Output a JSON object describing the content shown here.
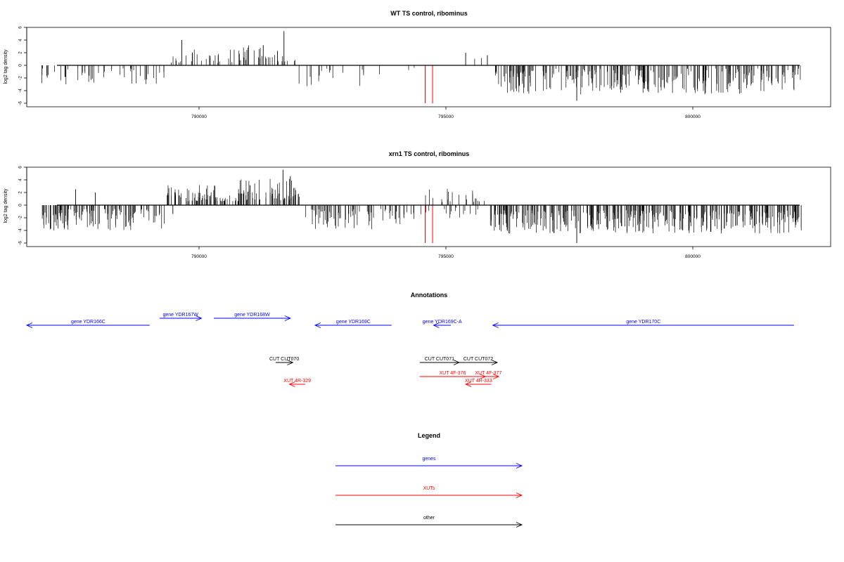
{
  "chart_data": [
    {
      "type": "bar",
      "title": "WT TS control, ribominus",
      "ylabel": "log2 tag density",
      "xlabel": "",
      "xlim": [
        786800,
        802300
      ],
      "ylim": [
        -6,
        6
      ],
      "x_ticks": [
        "790000",
        "795000",
        "800000"
      ],
      "y_ticks": [
        "6",
        "4",
        "2",
        "0",
        "-2",
        "-4",
        "-6"
      ],
      "grid": false,
      "segments": [
        {
          "start": 786800,
          "end": 789350,
          "density": 0.35,
          "min": -3.0,
          "max": -0.4,
          "sign": -1
        },
        {
          "start": 789350,
          "end": 790700,
          "density": 0.35,
          "min": 0.4,
          "max": 2.5,
          "sign": 1
        },
        {
          "start": 790700,
          "end": 791950,
          "density": 0.5,
          "min": 0.6,
          "max": 3.2,
          "sign": 1
        },
        {
          "start": 792000,
          "end": 794000,
          "density": 0.15,
          "min": -3.4,
          "max": -0.4,
          "sign": -1
        },
        {
          "start": 794100,
          "end": 794400,
          "density": 0.1,
          "min": -1.5,
          "max": -0.3,
          "sign": -1
        },
        {
          "start": 795300,
          "end": 795800,
          "density": 0.08,
          "min": 0.4,
          "max": 1.6,
          "sign": 1
        },
        {
          "start": 796000,
          "end": 797200,
          "density": 1.0,
          "min": -4.5,
          "max": -0.8,
          "sign": -1
        },
        {
          "start": 797200,
          "end": 802200,
          "density": 0.85,
          "min": -4.6,
          "max": -0.5,
          "sign": -1
        }
      ],
      "peaks": [
        {
          "x": 789650,
          "value": 4.0
        },
        {
          "x": 791720,
          "value": 5.4
        },
        {
          "x": 795400,
          "value": 2.0
        },
        {
          "x": 795840,
          "value": 1.6
        },
        {
          "x": 797650,
          "value": -5.6
        },
        {
          "x": 791300,
          "value": 3.2
        }
      ],
      "highlights": [
        {
          "x": 794580,
          "value": -6.0,
          "color": "#ff0000"
        },
        {
          "x": 794730,
          "value": -6.0,
          "color": "#ff0000"
        }
      ]
    },
    {
      "type": "bar",
      "title": "xrn1 TS control, ribominus",
      "ylabel": "log2 tag density",
      "xlabel": "",
      "xlim": [
        786800,
        802300
      ],
      "ylim": [
        -6,
        6
      ],
      "x_ticks": [
        "790000",
        "795000",
        "800000"
      ],
      "y_ticks": [
        "6",
        "4",
        "2",
        "0",
        "-2",
        "-4",
        "-6"
      ],
      "grid": false,
      "segments": [
        {
          "start": 786800,
          "end": 789300,
          "density": 0.9,
          "min": -4.0,
          "max": -0.6,
          "sign": -1
        },
        {
          "start": 789300,
          "end": 790800,
          "density": 1.0,
          "min": 0.6,
          "max": 3.2,
          "sign": 1
        },
        {
          "start": 790800,
          "end": 792050,
          "density": 1.0,
          "min": 0.8,
          "max": 4.2,
          "sign": 1
        },
        {
          "start": 792150,
          "end": 794400,
          "density": 0.6,
          "min": -3.8,
          "max": -0.6,
          "sign": -1
        },
        {
          "start": 794400,
          "end": 795900,
          "density": 0.25,
          "min": 0.5,
          "max": 2.8,
          "sign": 1
        },
        {
          "start": 794450,
          "end": 795900,
          "density": 0.2,
          "min": -2.2,
          "max": -0.4,
          "sign": -1
        },
        {
          "start": 795900,
          "end": 802200,
          "density": 1.1,
          "min": -4.5,
          "max": -0.8,
          "sign": -1
        }
      ],
      "peaks": [
        {
          "x": 787500,
          "value": 2.5
        },
        {
          "x": 787900,
          "value": 2.0
        },
        {
          "x": 791700,
          "value": 5.6
        },
        {
          "x": 791850,
          "value": 4.6
        },
        {
          "x": 797650,
          "value": -6.0
        },
        {
          "x": 789470,
          "value": -1.4
        }
      ],
      "highlights": [
        {
          "x": 794580,
          "value": -6.0,
          "color": "#ff0000"
        },
        {
          "x": 794730,
          "value": -6.0,
          "color": "#ff0000"
        }
      ]
    }
  ],
  "annotations": {
    "title": "Annotations",
    "features": [
      {
        "label": "gene YDR166C",
        "type": "gene",
        "strand": "-",
        "start": 786300,
        "end": 789000,
        "row": 1
      },
      {
        "label": "gene YDR167W",
        "type": "gene",
        "strand": "+",
        "start": 789200,
        "end": 790050,
        "row": 0
      },
      {
        "label": "gene YDR168W",
        "type": "gene",
        "strand": "+",
        "start": 790300,
        "end": 791850,
        "row": 0
      },
      {
        "label": "gene YDR169C",
        "type": "gene",
        "strand": "-",
        "start": 792350,
        "end": 793900,
        "row": 1
      },
      {
        "label": "gene YDR169C-A",
        "type": "gene",
        "strand": "-",
        "start": 794750,
        "end": 795100,
        "row": 1
      },
      {
        "label": "gene YDR170C",
        "type": "gene",
        "strand": "-",
        "start": 795950,
        "end": 802050,
        "row": 1
      },
      {
        "label": "CUT CUT070",
        "type": "other",
        "strand": "+",
        "start": 791550,
        "end": 791900,
        "row": 2
      },
      {
        "label": "CUT CUT071",
        "type": "other",
        "strand": "+",
        "start": 794470,
        "end": 795270,
        "row": 2
      },
      {
        "label": "CUT CUT072",
        "type": "other",
        "strand": "+",
        "start": 795270,
        "end": 796040,
        "row": 2
      },
      {
        "label": "XUT 4F-376",
        "type": "XUT",
        "strand": "+",
        "start": 794470,
        "end": 795800,
        "row": 3
      },
      {
        "label": "XUT 4F-377",
        "type": "XUT",
        "strand": "+",
        "start": 795650,
        "end": 796070,
        "row": 3
      },
      {
        "label": "XUT 4R-333",
        "type": "XUT",
        "strand": "-",
        "start": 795400,
        "end": 795920,
        "row": 4
      },
      {
        "label": "XUT 4R-329",
        "type": "XUT",
        "strand": "-",
        "start": 791830,
        "end": 792150,
        "row": 4
      }
    ]
  },
  "legend": {
    "title": "Legend",
    "items": [
      {
        "label": "genes",
        "color": "#0000ff"
      },
      {
        "label": "XUTs",
        "color": "#ff0000"
      },
      {
        "label": "other",
        "color": "#000000"
      }
    ]
  },
  "colors": {
    "gene": "#0000ff",
    "XUT": "#ff0000",
    "other": "#000000",
    "bars": "#000000"
  }
}
